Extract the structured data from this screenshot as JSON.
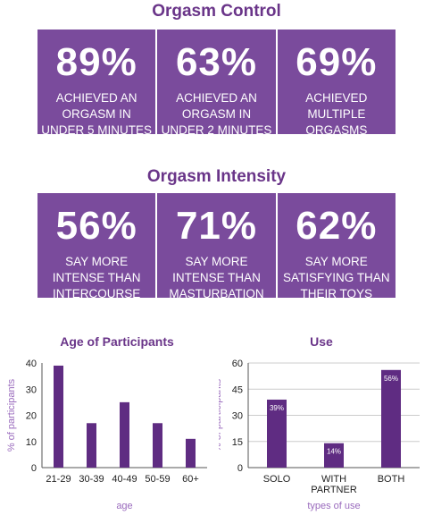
{
  "sections": {
    "control_title": "Orgasm Control",
    "intensity_title": "Orgasm Intensity"
  },
  "control_tiles": [
    {
      "value": "89%",
      "lines": [
        "ACHIEVED AN",
        "ORGASM IN",
        "UNDER 5 MINUTES"
      ]
    },
    {
      "value": "63%",
      "lines": [
        "ACHIEVED AN",
        "ORGASM IN",
        "UNDER 2 MINUTES"
      ]
    },
    {
      "value": "69%",
      "lines": [
        "ACHIEVED",
        "MULTIPLE",
        "ORGASMS"
      ]
    }
  ],
  "intensity_tiles": [
    {
      "value": "56%",
      "lines": [
        "SAY MORE",
        "INTENSE THAN",
        "INTERCOURSE"
      ]
    },
    {
      "value": "71%",
      "lines": [
        "SAY MORE",
        "INTENSE THAN",
        "MASTURBATION"
      ]
    },
    {
      "value": "62%",
      "lines": [
        "SAY MORE",
        "SATISFYING THAN",
        "THEIR TOYS"
      ]
    }
  ],
  "colors": {
    "accent": "#6a3589",
    "tile": "#7a4b9c",
    "bar": "#5f2c82",
    "axis_label": "#9a6bbd"
  },
  "chart_data": [
    {
      "type": "bar",
      "title": "Age of Participants",
      "categories": [
        "21-29",
        "30-39",
        "40-49",
        "50-59",
        "60+"
      ],
      "values": [
        39,
        17,
        25,
        17,
        11
      ],
      "xlabel": "age",
      "ylabel": "% of participants",
      "ylim": [
        0,
        40
      ],
      "yticks": [
        0,
        10,
        20,
        30,
        40
      ],
      "grid": false
    },
    {
      "type": "bar",
      "title": "Use",
      "categories": [
        "SOLO",
        "WITH PARTNER",
        "BOTH"
      ],
      "values": [
        39,
        14,
        56
      ],
      "data_labels": [
        "39%",
        "14%",
        "56%"
      ],
      "xlabel": "types of use",
      "ylabel": "% of participants",
      "ylim": [
        0,
        60
      ],
      "yticks": [
        0,
        15,
        30,
        45,
        60
      ],
      "grid": true
    }
  ]
}
